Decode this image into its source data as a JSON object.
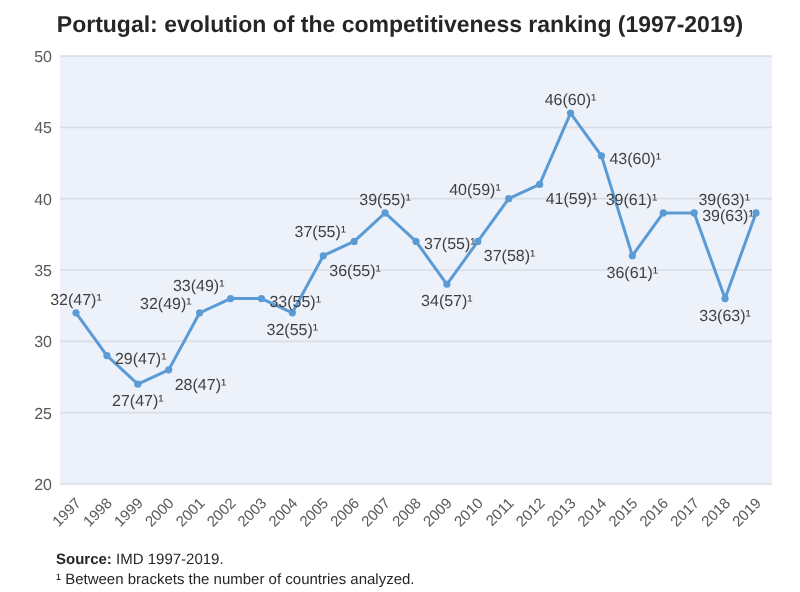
{
  "chart_data": {
    "type": "line",
    "title": "Portugal: evolution of the competitiveness ranking (1997-2019)",
    "categories": [
      "1997",
      "1998",
      "1999",
      "2000",
      "2001",
      "2002",
      "2003",
      "2004",
      "2005",
      "2006",
      "2007",
      "2008",
      "2009",
      "2010",
      "2011",
      "2012",
      "2013",
      "2014",
      "2015",
      "2016",
      "2017",
      "2018",
      "2019"
    ],
    "series": [
      {
        "color": "#5b9bd5",
        "values": [
          32,
          29,
          27,
          28,
          32,
          33,
          33,
          32,
          36,
          37,
          39,
          37,
          34,
          37,
          40,
          41,
          46,
          43,
          36,
          39,
          39,
          33,
          39
        ],
        "value_labels": [
          "32(47)¹",
          "29(47)¹",
          "27(47)¹",
          "28(47)¹",
          "32(49)¹",
          "33(49)¹",
          "33(55)¹",
          "32(55)¹",
          "36(55)¹",
          "37(55)¹",
          "39(55)¹",
          "37(55)¹",
          "34(57)¹",
          "37(58)¹",
          "40(59)¹",
          "41(59)¹",
          "46(60)¹",
          "43(60)¹",
          "36(61)¹",
          "39(61)¹",
          "39(63)¹",
          "33(63)¹",
          "39(63)¹"
        ]
      }
    ],
    "ylim": [
      20,
      50
    ],
    "yticks": [
      20,
      25,
      30,
      35,
      40,
      45,
      50
    ],
    "grid": "y",
    "marker": "circle",
    "line_style": "solid",
    "annotations": [
      "Source: IMD 1997-2019.",
      "¹ Between brackets the number of countries analyzed."
    ]
  }
}
